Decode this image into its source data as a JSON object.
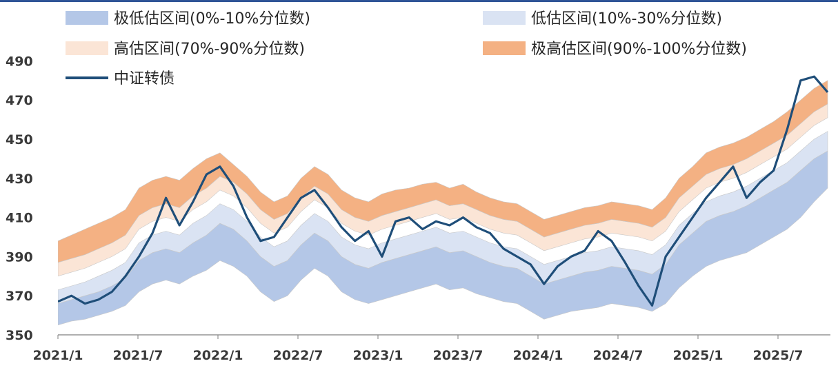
{
  "chart_data": {
    "type": "area",
    "title": "",
    "xlabel": "",
    "ylabel": "",
    "ylim": [
      350,
      500
    ],
    "grid": false,
    "legend_position": "top",
    "x_tick_labels": [
      "2021/1",
      "2021/7",
      "2022/1",
      "2022/7",
      "2023/1",
      "2023/7",
      "2024/1",
      "2024/7",
      "2025/1",
      "2025/7"
    ],
    "y_ticks": [
      350,
      370,
      390,
      410,
      430,
      450,
      470,
      490
    ],
    "x": [
      "2021/1",
      "2021/2",
      "2021/3",
      "2021/4",
      "2021/5",
      "2021/6",
      "2021/7",
      "2021/8",
      "2021/9",
      "2021/10",
      "2021/11",
      "2021/12",
      "2022/1",
      "2022/2",
      "2022/3",
      "2022/4",
      "2022/5",
      "2022/6",
      "2022/7",
      "2022/8",
      "2022/9",
      "2022/10",
      "2022/11",
      "2022/12",
      "2023/1",
      "2023/2",
      "2023/3",
      "2023/4",
      "2023/5",
      "2023/6",
      "2023/7",
      "2023/8",
      "2023/9",
      "2023/10",
      "2023/11",
      "2023/12",
      "2024/1",
      "2024/2",
      "2024/3",
      "2024/4",
      "2024/5",
      "2024/6",
      "2024/7",
      "2024/8",
      "2024/9",
      "2024/10",
      "2024/11",
      "2024/12",
      "2025/1",
      "2025/2",
      "2025/3",
      "2025/4",
      "2025/5",
      "2025/6",
      "2025/7",
      "2025/8",
      "2025/9",
      "2025/10"
    ],
    "bands": [
      {
        "name": "极低估区间(0%-10%分位数)",
        "color": "#b4c7e7",
        "lower": [
          355,
          357,
          358,
          360,
          362,
          365,
          372,
          376,
          378,
          376,
          380,
          383,
          388,
          385,
          380,
          372,
          367,
          370,
          378,
          384,
          380,
          372,
          368,
          366,
          368,
          370,
          372,
          374,
          376,
          373,
          374,
          371,
          369,
          367,
          366,
          362,
          358,
          360,
          362,
          363,
          364,
          366,
          365,
          364,
          362,
          366,
          374,
          380,
          385,
          388,
          390,
          392,
          396,
          400,
          404,
          410,
          418,
          425
        ],
        "upper": [
          366,
          368,
          370,
          372,
          375,
          379,
          388,
          392,
          394,
          392,
          397,
          401,
          407,
          404,
          398,
          390,
          385,
          388,
          396,
          402,
          398,
          390,
          386,
          384,
          387,
          389,
          391,
          393,
          395,
          392,
          393,
          390,
          387,
          385,
          384,
          380,
          376,
          378,
          380,
          382,
          383,
          385,
          384,
          383,
          381,
          386,
          396,
          402,
          408,
          411,
          413,
          416,
          420,
          424,
          428,
          434,
          440,
          444
        ]
      },
      {
        "name": "低估区间(10%-30%分位数)",
        "color": "#dae3f3",
        "lower": [
          366,
          368,
          370,
          372,
          375,
          379,
          388,
          392,
          394,
          392,
          397,
          401,
          407,
          404,
          398,
          390,
          385,
          388,
          396,
          402,
          398,
          390,
          386,
          384,
          387,
          389,
          391,
          393,
          395,
          392,
          393,
          390,
          387,
          385,
          384,
          380,
          376,
          378,
          380,
          382,
          383,
          385,
          384,
          383,
          381,
          386,
          396,
          402,
          408,
          411,
          413,
          416,
          420,
          424,
          428,
          434,
          440,
          444
        ],
        "upper": [
          373,
          375,
          377,
          380,
          383,
          387,
          397,
          401,
          403,
          401,
          407,
          411,
          417,
          414,
          408,
          400,
          395,
          398,
          406,
          412,
          408,
          400,
          396,
          394,
          397,
          399,
          401,
          403,
          405,
          402,
          403,
          400,
          397,
          395,
          394,
          390,
          386,
          388,
          390,
          392,
          393,
          395,
          394,
          393,
          391,
          396,
          406,
          412,
          418,
          421,
          423,
          426,
          430,
          434,
          438,
          444,
          450,
          454
        ]
      },
      {
        "name": "高估区间(70%-90%分位数)",
        "color": "#fbe5d6",
        "lower": [
          380,
          382,
          384,
          387,
          390,
          394,
          404,
          408,
          410,
          408,
          414,
          418,
          424,
          421,
          415,
          407,
          402,
          405,
          413,
          419,
          415,
          407,
          403,
          401,
          404,
          406,
          408,
          410,
          412,
          409,
          410,
          407,
          404,
          402,
          401,
          397,
          393,
          395,
          397,
          399,
          400,
          402,
          401,
          400,
          398,
          403,
          413,
          419,
          425,
          428,
          430,
          433,
          437,
          441,
          445,
          451,
          457,
          461
        ],
        "upper": [
          387,
          389,
          391,
          394,
          397,
          401,
          411,
          415,
          417,
          415,
          421,
          425,
          431,
          428,
          422,
          414,
          409,
          412,
          420,
          426,
          422,
          414,
          410,
          408,
          411,
          413,
          415,
          417,
          419,
          416,
          417,
          414,
          411,
          409,
          408,
          404,
          400,
          402,
          404,
          406,
          407,
          409,
          408,
          407,
          405,
          410,
          420,
          426,
          432,
          435,
          437,
          440,
          444,
          448,
          452,
          458,
          464,
          468
        ]
      },
      {
        "name": "极高估区间(90%-100%分位数)",
        "color": "#f4b183",
        "lower": [
          387,
          389,
          391,
          394,
          397,
          401,
          411,
          415,
          417,
          415,
          421,
          425,
          431,
          428,
          422,
          414,
          409,
          412,
          420,
          426,
          422,
          414,
          410,
          408,
          411,
          413,
          415,
          417,
          419,
          416,
          417,
          414,
          411,
          409,
          408,
          404,
          400,
          402,
          404,
          406,
          407,
          409,
          408,
          407,
          405,
          410,
          420,
          426,
          432,
          435,
          437,
          440,
          444,
          448,
          452,
          458,
          464,
          468
        ],
        "upper": [
          398,
          401,
          404,
          407,
          410,
          414,
          425,
          429,
          431,
          429,
          435,
          440,
          443,
          437,
          431,
          423,
          418,
          421,
          430,
          436,
          432,
          424,
          420,
          418,
          422,
          424,
          425,
          427,
          428,
          425,
          427,
          423,
          420,
          418,
          417,
          413,
          409,
          411,
          413,
          415,
          416,
          418,
          417,
          416,
          414,
          420,
          430,
          436,
          443,
          446,
          448,
          451,
          455,
          459,
          464,
          470,
          476,
          480
        ]
      }
    ],
    "series": [
      {
        "name": "中证转债",
        "color": "#1f4e79",
        "values": [
          367,
          370,
          366,
          368,
          372,
          380,
          390,
          402,
          420,
          406,
          418,
          432,
          436,
          426,
          410,
          398,
          400,
          410,
          420,
          424,
          415,
          405,
          398,
          403,
          390,
          408,
          410,
          404,
          408,
          406,
          410,
          405,
          402,
          394,
          390,
          386,
          376,
          385,
          390,
          393,
          403,
          398,
          387,
          375,
          365,
          390,
          400,
          410,
          420,
          428,
          436,
          420,
          428,
          434,
          455,
          480,
          482,
          474
        ]
      }
    ]
  }
}
